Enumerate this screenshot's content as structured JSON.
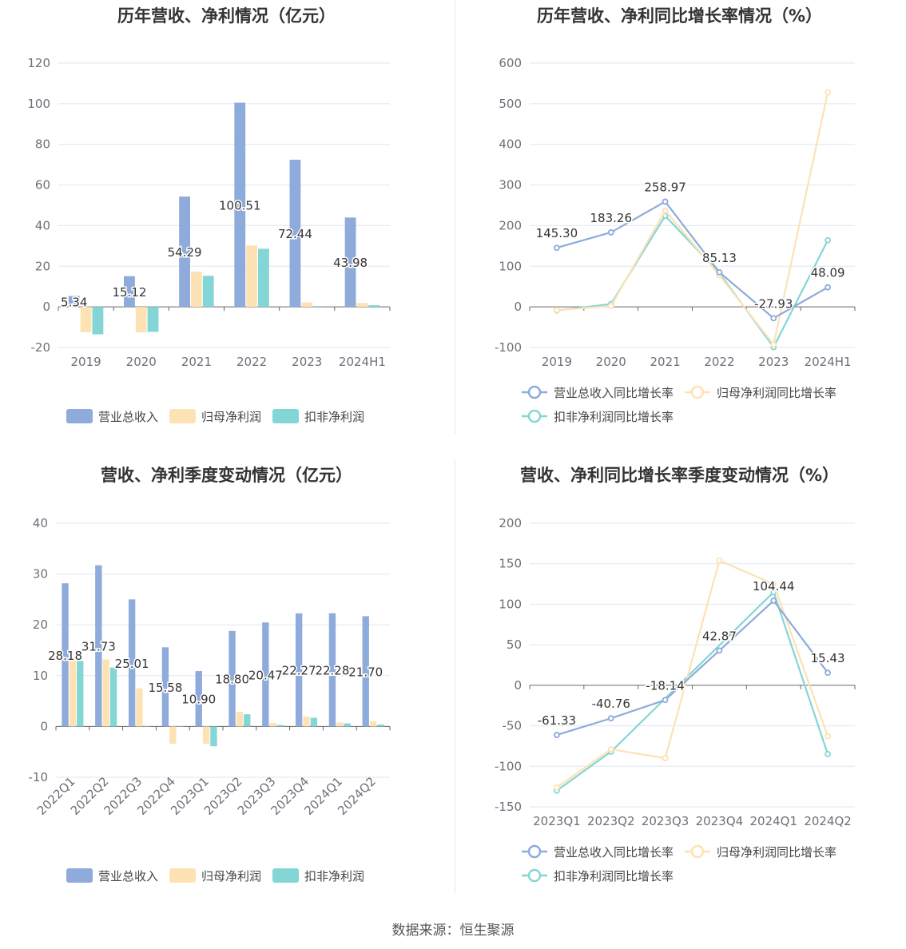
{
  "source": "数据来源：恒生聚源",
  "chart_data": [
    {
      "id": "annual_amount",
      "type": "bar",
      "title": "历年营收、净利情况（亿元）",
      "categories": [
        "2019",
        "2020",
        "2021",
        "2022",
        "2023",
        "2024H1"
      ],
      "ylim": [
        -20,
        120
      ],
      "yticks": [
        -20,
        0,
        20,
        40,
        60,
        80,
        100,
        120
      ],
      "legend_position": "bottom",
      "series": [
        {
          "name": "营业总收入",
          "color": "#8eabdb",
          "values": [
            5.34,
            15.12,
            54.29,
            100.51,
            72.44,
            43.98
          ],
          "labels": [
            "5.34",
            "15.12",
            "54.29",
            "100.51",
            "72.44",
            "43.98"
          ]
        },
        {
          "name": "归母净利润",
          "color": "#fde2b3",
          "values": [
            -12.5,
            -12.5,
            17.3,
            30.2,
            2.2,
            1.9
          ]
        },
        {
          "name": "扣非净利润",
          "color": "#84d6d6",
          "values": [
            -13.5,
            -12.3,
            15.3,
            28.6,
            0.4,
            0.8
          ]
        }
      ]
    },
    {
      "id": "annual_growth",
      "type": "line",
      "title": "历年营收、净利同比增长率情况（%）",
      "categories": [
        "2019",
        "2020",
        "2021",
        "2022",
        "2023",
        "2024H1"
      ],
      "ylim": [
        -100,
        600
      ],
      "yticks": [
        -100,
        0,
        100,
        200,
        300,
        400,
        500,
        600
      ],
      "legend_position": "bottom",
      "series": [
        {
          "name": "营业总收入同比增长率",
          "color": "#8eabdb",
          "values": [
            145.3,
            183.26,
            258.97,
            85.13,
            -27.93,
            48.09
          ],
          "labels": [
            "145.30",
            "183.26",
            "258.97",
            "85.13",
            "-27.93",
            "48.09"
          ]
        },
        {
          "name": "归母净利润同比增长率",
          "color": "#fde2b3",
          "values": [
            -8,
            2,
            237,
            78,
            -93,
            528
          ]
        },
        {
          "name": "扣非净利润同比增长率",
          "color": "#84d6d6",
          "values": [
            -9,
            7,
            224,
            83,
            -99,
            164
          ]
        }
      ]
    },
    {
      "id": "quarterly_amount",
      "type": "bar",
      "title": "营收、净利季度变动情况（亿元）",
      "categories": [
        "2022Q1",
        "2022Q2",
        "2022Q3",
        "2022Q4",
        "2023Q1",
        "2023Q2",
        "2023Q3",
        "2023Q4",
        "2024Q1",
        "2024Q2"
      ],
      "ylim": [
        -10,
        40
      ],
      "yticks": [
        -10,
        0,
        10,
        20,
        30,
        40
      ],
      "legend_position": "bottom",
      "series": [
        {
          "name": "营业总收入",
          "color": "#8eabdb",
          "values": [
            28.18,
            31.73,
            25.01,
            15.58,
            10.9,
            18.8,
            20.47,
            22.27,
            22.28,
            21.7
          ],
          "labels": [
            "28.18",
            "31.73",
            "25.01",
            "15.58",
            "10.90",
            "18.80",
            "20.47",
            "22.27",
            "22.28",
            "21.70"
          ]
        },
        {
          "name": "归母净利润",
          "color": "#fde2b3",
          "values": [
            13.0,
            13.2,
            7.5,
            -3.4,
            -3.4,
            2.9,
            0.7,
            1.9,
            0.8,
            1.0
          ]
        },
        {
          "name": "扣非净利润",
          "color": "#84d6d6",
          "values": [
            12.9,
            11.6,
            0,
            0,
            -3.9,
            2.4,
            0.3,
            1.7,
            0.6,
            0.4
          ]
        }
      ]
    },
    {
      "id": "quarterly_growth",
      "type": "line",
      "title": "营收、净利同比增长率季度变动情况（%）",
      "categories": [
        "2023Q1",
        "2023Q2",
        "2023Q3",
        "2023Q4",
        "2024Q1",
        "2024Q2"
      ],
      "ylim": [
        -150,
        200
      ],
      "yticks": [
        -150,
        -100,
        -50,
        0,
        50,
        100,
        150,
        200
      ],
      "legend_position": "bottom",
      "series": [
        {
          "name": "营业总收入同比增长率",
          "color": "#8eabdb",
          "values": [
            -61.33,
            -40.76,
            -18.14,
            42.87,
            104.44,
            15.43
          ],
          "labels": [
            "-61.33",
            "-40.76",
            "-18.14",
            "42.87",
            "104.44",
            "15.43"
          ]
        },
        {
          "name": "归母净利润同比增长率",
          "color": "#fde2b3",
          "values": [
            -126,
            -79,
            -90,
            154,
            125,
            -63
          ]
        },
        {
          "name": "扣非净利润同比增长率",
          "color": "#84d6d6",
          "values": [
            -130,
            -82,
            null,
            null,
            115,
            -85
          ]
        }
      ]
    }
  ]
}
